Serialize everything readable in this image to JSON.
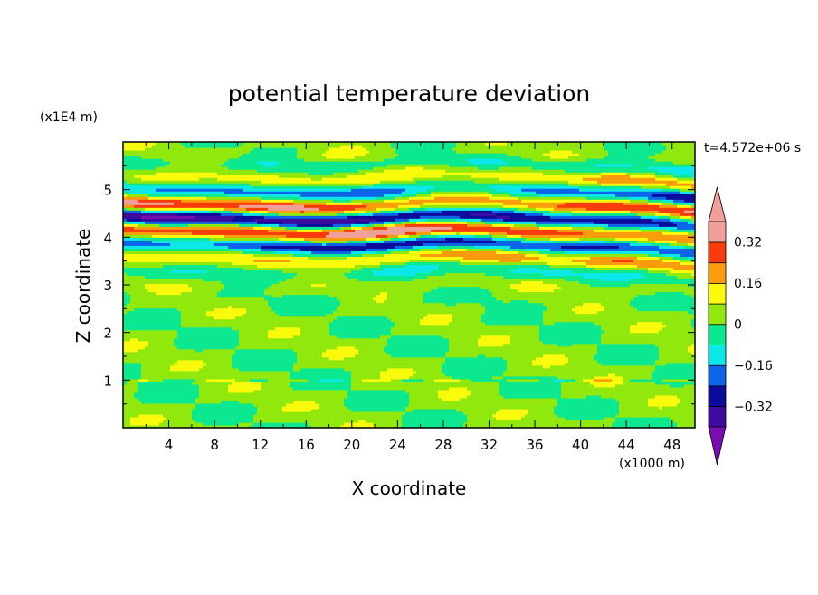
{
  "chart_data": {
    "type": "heatmap",
    "title": "potential temperature deviation",
    "xlabel": "X coordinate",
    "ylabel": "Z coordinate",
    "x_unit_label": "(x1000 m)",
    "y_unit_label": "(x1E4 m)",
    "time_label": "t=4.572e+06 s",
    "xlim": [
      0,
      50
    ],
    "ylim": [
      0,
      6
    ],
    "x_ticks": [
      4,
      8,
      12,
      16,
      20,
      24,
      28,
      32,
      36,
      40,
      44,
      48
    ],
    "y_ticks": [
      1,
      2,
      3,
      4,
      5
    ],
    "x_tick_labels": [
      "4",
      "8",
      "12",
      "16",
      "20",
      "24",
      "28",
      "32",
      "36",
      "40",
      "44",
      "48"
    ],
    "y_tick_labels": [
      "1",
      "2",
      "3",
      "4",
      "5"
    ],
    "grid": false,
    "colorbar": {
      "position": "right",
      "levels": [
        -0.4,
        -0.32,
        -0.24,
        -0.16,
        -0.08,
        0,
        0.08,
        0.16,
        0.24,
        0.32,
        0.4
      ],
      "tick_values": [
        0.32,
        0.16,
        0,
        -0.16,
        -0.32
      ],
      "tick_labels": [
        "0.32",
        "0.16",
        "0",
        "−0.16",
        "−0.32"
      ],
      "colors_low_to_high": [
        "#7a0cb0",
        "#3c0ca0",
        "#0c0c9c",
        "#0c64e8",
        "#0ce8e8",
        "#0ce890",
        "#90e80c",
        "#fafa0c",
        "#fa9c0c",
        "#fa3c0c",
        "#f0a098"
      ]
    }
  }
}
